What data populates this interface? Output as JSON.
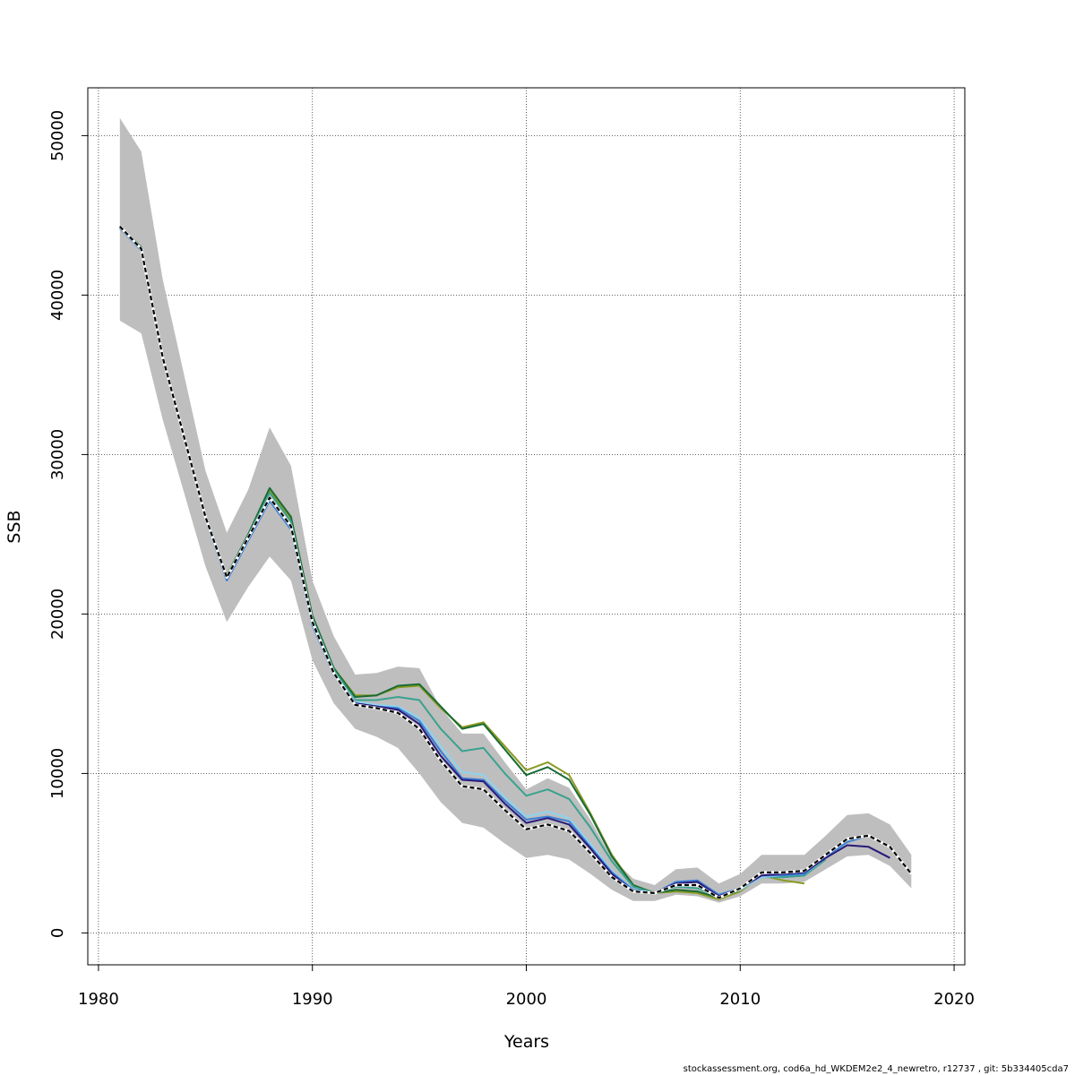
{
  "chart_data": {
    "type": "line",
    "title": "",
    "xlabel": "Years",
    "ylabel": "SSB",
    "xlim": [
      1979.5,
      2020.5
    ],
    "ylim": [
      -2000,
      53000
    ],
    "xticks": [
      1980,
      1990,
      2000,
      2010,
      2020
    ],
    "yticks": [
      0,
      10000,
      20000,
      30000,
      40000,
      50000
    ],
    "xtick_labels": [
      "1980",
      "1990",
      "2000",
      "2010",
      "2020"
    ],
    "ytick_labels": [
      "0",
      "10000",
      "20000",
      "30000",
      "40000",
      "50000"
    ],
    "grid": true,
    "legend": "none",
    "footer": "stockassessment.org, cod6a_hd_WKDEM2e2_4_newretro, r12737 , git: 5b334405cda7",
    "confidence_band": {
      "color": "#bebebe",
      "x": [
        1981,
        1982,
        1983,
        1984,
        1985,
        1986,
        1987,
        1988,
        1989,
        1990,
        1991,
        1992,
        1993,
        1994,
        1995,
        1996,
        1997,
        1998,
        1999,
        2000,
        2001,
        2002,
        2003,
        2004,
        2005,
        2006,
        2007,
        2008,
        2009,
        2010,
        2011,
        2012,
        2013,
        2014,
        2015,
        2016,
        2017,
        2018
      ],
      "lower": [
        38400,
        37600,
        32200,
        27600,
        23000,
        19500,
        21700,
        23600,
        22100,
        17100,
        14400,
        12800,
        12300,
        11600,
        10000,
        8200,
        6900,
        6600,
        5600,
        4700,
        4900,
        4600,
        3700,
        2700,
        2000,
        2000,
        2400,
        2300,
        1900,
        2300,
        3100,
        3100,
        3200,
        4000,
        4800,
        4900,
        4200,
        2800
      ],
      "upper": [
        51100,
        49000,
        41000,
        35000,
        29000,
        25100,
        27800,
        31700,
        29300,
        22100,
        18600,
        16200,
        16300,
        16700,
        16600,
        14100,
        12500,
        12500,
        10700,
        9000,
        9700,
        9100,
        7100,
        4700,
        3400,
        3000,
        4000,
        4100,
        3100,
        3700,
        4900,
        4900,
        4900,
        6100,
        7400,
        7500,
        6800,
        4900
      ]
    },
    "series": [
      {
        "color": "#000000",
        "dashed": true,
        "x": [
          1981,
          1982,
          1983,
          1984,
          1985,
          1986,
          1987,
          1988,
          1989,
          1990,
          1991,
          1992,
          1993,
          1994,
          1995,
          1996,
          1997,
          1998,
          1999,
          2000,
          2001,
          2002,
          2003,
          2004,
          2005,
          2006,
          2007,
          2008,
          2009,
          2010,
          2011,
          2012,
          2013,
          2014,
          2015,
          2016,
          2017,
          2018
        ],
        "values": [
          44300,
          42900,
          36100,
          31100,
          26100,
          22300,
          24800,
          27300,
          25500,
          19500,
          16300,
          14300,
          14100,
          13800,
          12800,
          10800,
          9200,
          9000,
          7700,
          6500,
          6800,
          6400,
          5000,
          3500,
          2600,
          2500,
          3000,
          3000,
          2200,
          2800,
          3800,
          3800,
          3900,
          4900,
          5900,
          6100,
          5400,
          3700
        ]
      },
      {
        "color": "#2a1a7a",
        "dashed": false,
        "x": [
          1981,
          1982,
          1983,
          1984,
          1985,
          1986,
          1987,
          1988,
          1989,
          1990,
          1991,
          1992,
          1993,
          1994,
          1995,
          1996,
          1997,
          1998,
          1999,
          2000,
          2001,
          2002,
          2003,
          2004,
          2005,
          2006,
          2007,
          2008,
          2009,
          2010,
          2011,
          2012,
          2013,
          2014,
          2015,
          2016,
          2017
        ],
        "values": [
          44300,
          42900,
          36100,
          31100,
          26100,
          22300,
          24800,
          27300,
          25500,
          19500,
          16300,
          14400,
          14200,
          14000,
          13100,
          11100,
          9600,
          9500,
          8100,
          6900,
          7200,
          6800,
          5300,
          3700,
          2600,
          2500,
          3100,
          3200,
          2300,
          2800,
          3600,
          3700,
          3800,
          4700,
          5500,
          5400,
          4700
        ]
      },
      {
        "color": "#3b7fd4",
        "dashed": false,
        "x": [
          1981,
          1982,
          1983,
          1984,
          1985,
          1986,
          1987,
          1988,
          1989,
          1990,
          1991,
          1992,
          1993,
          1994,
          1995,
          1996,
          1997,
          1998,
          1999,
          2000,
          2001,
          2002,
          2003,
          2004,
          2005,
          2006,
          2007,
          2008,
          2009,
          2010,
          2011,
          2012,
          2013,
          2014,
          2015,
          2016
        ],
        "values": [
          44200,
          42800,
          36000,
          31000,
          26000,
          22100,
          24600,
          27100,
          25300,
          19300,
          16200,
          14400,
          14200,
          14100,
          13300,
          11400,
          9700,
          9600,
          8300,
          7100,
          7300,
          7000,
          5400,
          3800,
          2700,
          2500,
          3200,
          3300,
          2400,
          2800,
          3600,
          3600,
          3700,
          4800,
          5700,
          6100
        ]
      },
      {
        "color": "#8fd3ee",
        "dashed": false,
        "x": [
          1981,
          1982,
          1983,
          1984,
          1985,
          1986,
          1987,
          1988,
          1989,
          1990,
          1991,
          1992,
          1993,
          1994,
          1995,
          1996,
          1997,
          1998,
          1999,
          2000,
          2001,
          2002,
          2003,
          2004,
          2005,
          2006,
          2007,
          2008,
          2009,
          2010,
          2011,
          2012,
          2013,
          2014,
          2015
        ],
        "values": [
          44200,
          42800,
          36000,
          31000,
          26000,
          22200,
          24700,
          27200,
          25400,
          19400,
          16300,
          14500,
          14300,
          14200,
          13500,
          11700,
          10100,
          9900,
          8500,
          7300,
          7600,
          7200,
          5600,
          3900,
          2700,
          2500,
          3100,
          3200,
          2400,
          2700,
          3500,
          3600,
          3700,
          4700,
          5700
        ]
      },
      {
        "color": "#3aa28f",
        "dashed": false,
        "x": [
          1981,
          1982,
          1983,
          1984,
          1985,
          1986,
          1987,
          1988,
          1989,
          1990,
          1991,
          1992,
          1993,
          1994,
          1995,
          1996,
          1997,
          1998,
          1999,
          2000,
          2001,
          2002,
          2003,
          2004,
          2005,
          2006,
          2007,
          2008,
          2009,
          2010,
          2011,
          2012,
          2013,
          2014
        ],
        "values": [
          44200,
          42900,
          36100,
          31100,
          26100,
          22300,
          24900,
          27600,
          25800,
          19700,
          16500,
          14600,
          14600,
          14800,
          14600,
          12800,
          11400,
          11600,
          10000,
          8600,
          9000,
          8400,
          6600,
          4500,
          2900,
          2500,
          2900,
          2800,
          2300,
          2700,
          3500,
          3500,
          3600,
          4600
        ]
      },
      {
        "color": "#1a6b34",
        "dashed": false,
        "x": [
          1981,
          1982,
          1983,
          1984,
          1985,
          1986,
          1987,
          1988,
          1989,
          1990,
          1991,
          1992,
          1993,
          1994,
          1995,
          1996,
          1997,
          1998,
          1999,
          2000,
          2001,
          2002,
          2003,
          2004,
          2005,
          2006,
          2007,
          2008,
          2009,
          2010,
          2011,
          2012,
          2013
        ],
        "values": [
          44300,
          43000,
          36200,
          31200,
          26200,
          22400,
          25000,
          27900,
          26100,
          19900,
          16600,
          14800,
          14900,
          15500,
          15600,
          14200,
          12800,
          13100,
          11500,
          9900,
          10400,
          9600,
          7400,
          4800,
          3000,
          2500,
          2700,
          2600,
          2200,
          2700,
          3600,
          3500,
          3600
        ]
      },
      {
        "color": "#8a9a22",
        "dashed": false,
        "x": [
          1981,
          1982,
          1983,
          1984,
          1985,
          1986,
          1987,
          1988,
          1989,
          1990,
          1991,
          1992,
          1993,
          1994,
          1995,
          1996,
          1997,
          1998,
          1999,
          2000,
          2001,
          2002,
          2003,
          2004,
          2005,
          2006,
          2007,
          2008,
          2009,
          2010,
          2011,
          2012,
          2013
        ],
        "values": [
          44200,
          42900,
          36100,
          31100,
          26100,
          22400,
          24900,
          27700,
          26000,
          19800,
          16600,
          14900,
          14900,
          15400,
          15500,
          14100,
          12900,
          13200,
          11700,
          10200,
          10700,
          9900,
          7500,
          4900,
          3000,
          2500,
          2600,
          2500,
          2100,
          2600,
          3600,
          3300,
          3100
        ]
      }
    ]
  }
}
